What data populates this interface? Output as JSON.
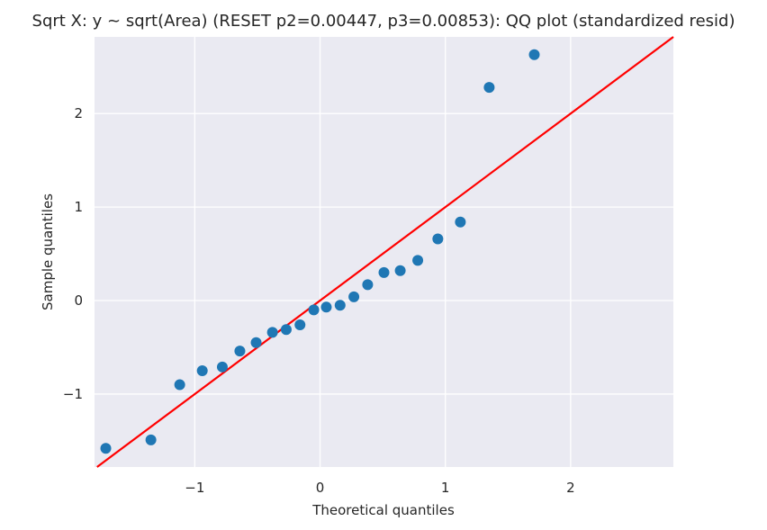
{
  "chart_data": {
    "type": "scatter",
    "title": "Sqrt X: y ~ sqrt(Area) (RESET p2=0.00447, p3=0.00853): QQ plot (standardized resid)",
    "xlabel": "Theoretical quantiles",
    "ylabel": "Sample quantiles",
    "xlim": [
      -1.8,
      2.82
    ],
    "ylim": [
      -1.78,
      2.82
    ],
    "xticks": [
      -1,
      0,
      1,
      2
    ],
    "yticks": [
      -1,
      0,
      1,
      2
    ],
    "xtick_labels": [
      "−1",
      "0",
      "1",
      "2"
    ],
    "ytick_labels": [
      "−1",
      "0",
      "1",
      "2"
    ],
    "grid": true,
    "series": [
      {
        "points": [
          [
            -1.71,
            -1.58
          ],
          [
            -1.35,
            -1.49
          ],
          [
            -1.12,
            -0.9
          ],
          [
            -0.94,
            -0.75
          ],
          [
            -0.78,
            -0.71
          ],
          [
            -0.64,
            -0.54
          ],
          [
            -0.51,
            -0.45
          ],
          [
            -0.38,
            -0.34
          ],
          [
            -0.27,
            -0.31
          ],
          [
            -0.16,
            -0.26
          ],
          [
            -0.05,
            -0.1
          ],
          [
            0.05,
            -0.07
          ],
          [
            0.16,
            -0.05
          ],
          [
            0.27,
            0.04
          ],
          [
            0.38,
            0.17
          ],
          [
            0.51,
            0.3
          ],
          [
            0.64,
            0.32
          ],
          [
            0.78,
            0.43
          ],
          [
            0.94,
            0.66
          ],
          [
            1.12,
            0.84
          ],
          [
            1.35,
            2.28
          ],
          [
            1.71,
            2.63
          ]
        ]
      }
    ],
    "reference_line": {
      "slope": 1,
      "intercept": 0
    },
    "colors": {
      "points": "#1f77b4",
      "line": "#ff0000",
      "plot_background": "#eaeaf2",
      "grid": "#ffffff"
    }
  }
}
